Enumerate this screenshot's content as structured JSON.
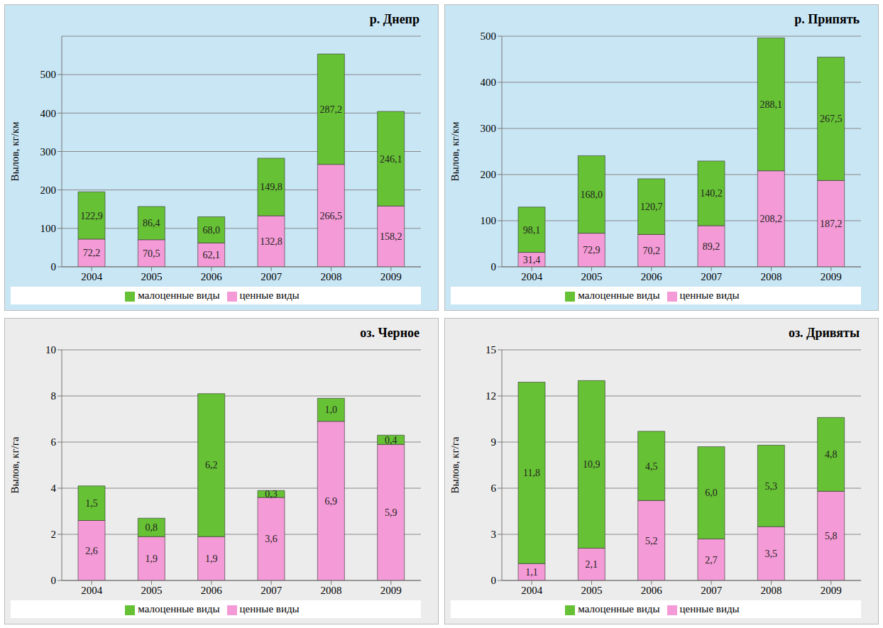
{
  "chart_data": [
    {
      "type": "bar",
      "title": "р. Днепр",
      "y_label": "Вылов, кг/км",
      "stacked": true,
      "data_labels": true,
      "grid": true,
      "legend": "bottom",
      "categories": [
        "2004",
        "2005",
        "2006",
        "2007",
        "2008",
        "2009"
      ],
      "ylim": [
        0,
        600
      ],
      "yticks": [
        0,
        100,
        200,
        300,
        400,
        500
      ],
      "series": [
        {
          "name": "ценные виды",
          "color": "#f49ad6",
          "values": [
            72.2,
            70.5,
            62.1,
            132.8,
            266.5,
            158.2
          ],
          "value_labels": [
            "72,2",
            "70,5",
            "62,1",
            "132,8",
            "266,5",
            "158,2"
          ]
        },
        {
          "name": "малоценные виды",
          "color": "#66c234",
          "values": [
            122.9,
            86.4,
            68.0,
            149.8,
            287.2,
            246.1
          ],
          "value_labels": [
            "122,9",
            "86,4",
            "68,0",
            "149,8",
            "287,2",
            "246,1"
          ]
        }
      ]
    },
    {
      "type": "bar",
      "title": "р. Припять",
      "y_label": "Вылов, кг/км",
      "stacked": true,
      "data_labels": true,
      "grid": true,
      "legend": "bottom",
      "categories": [
        "2004",
        "2005",
        "2006",
        "2007",
        "2008",
        "2009"
      ],
      "ylim": [
        0,
        500
      ],
      "yticks": [
        0,
        100,
        200,
        300,
        400,
        500
      ],
      "series": [
        {
          "name": "ценные виды",
          "color": "#f49ad6",
          "values": [
            31.4,
            72.9,
            70.2,
            89.2,
            208.2,
            187.2
          ],
          "value_labels": [
            "31,4",
            "72,9",
            "70,2",
            "89,2",
            "208,2",
            "187,2"
          ]
        },
        {
          "name": "малоценные виды",
          "color": "#66c234",
          "values": [
            98.1,
            168.0,
            120.7,
            140.2,
            288.1,
            267.5
          ],
          "value_labels": [
            "98,1",
            "168,0",
            "120,7",
            "140,2",
            "288,1",
            "267,5"
          ]
        }
      ]
    },
    {
      "type": "bar",
      "title": "оз. Черное",
      "y_label": "Вылов, кг/га",
      "stacked": true,
      "data_labels": true,
      "grid": true,
      "legend": "bottom",
      "categories": [
        "2004",
        "2005",
        "2006",
        "2007",
        "2008",
        "2009"
      ],
      "ylim": [
        0,
        10
      ],
      "yticks": [
        0,
        2,
        4,
        6,
        8,
        10
      ],
      "series": [
        {
          "name": "ценные виды",
          "color": "#f49ad6",
          "values": [
            2.6,
            1.9,
            1.9,
            3.6,
            6.9,
            5.9
          ],
          "value_labels": [
            "2,6",
            "1,9",
            "1,9",
            "3,6",
            "6,9",
            "5,9"
          ]
        },
        {
          "name": "малоценные виды",
          "color": "#66c234",
          "values": [
            1.5,
            0.8,
            6.2,
            0.3,
            1.0,
            0.4
          ],
          "value_labels": [
            "1,5",
            "0,8",
            "6,2",
            "0,3",
            "1,0",
            "0,4"
          ]
        }
      ]
    },
    {
      "type": "bar",
      "title": "оз. Дривяты",
      "y_label": "Вылов, кг/га",
      "stacked": true,
      "data_labels": true,
      "grid": true,
      "legend": "bottom",
      "categories": [
        "2004",
        "2005",
        "2006",
        "2007",
        "2008",
        "2009"
      ],
      "ylim": [
        0,
        15
      ],
      "yticks": [
        0,
        3,
        6,
        9,
        12,
        15
      ],
      "series": [
        {
          "name": "ценные виды",
          "color": "#f49ad6",
          "values": [
            1.1,
            2.1,
            5.2,
            2.7,
            3.5,
            5.8
          ],
          "value_labels": [
            "1,1",
            "2,1",
            "5,2",
            "2,7",
            "3,5",
            "5,8"
          ]
        },
        {
          "name": "малоценные виды",
          "color": "#66c234",
          "values": [
            11.8,
            10.9,
            4.5,
            6.0,
            5.3,
            4.8
          ],
          "value_labels": [
            "11,8",
            "10,9",
            "4,5",
            "6,0",
            "5,3",
            "4,8"
          ]
        }
      ]
    }
  ]
}
